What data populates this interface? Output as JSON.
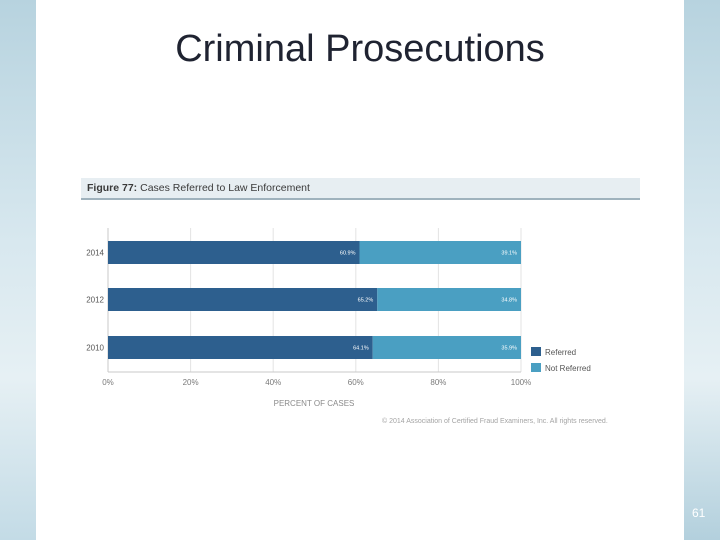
{
  "slide": {
    "title": "Criminal Prosecutions",
    "page_number": "61"
  },
  "figure": {
    "label": "Figure 77:",
    "title": "Cases Referred to Law Enforcement",
    "copyright": "© 2014 Association of Certified Fraud Examiners, Inc. All rights reserved."
  },
  "chart_data": {
    "type": "bar",
    "orientation": "horizontal",
    "stacked": true,
    "title": "Figure 77: Cases Referred to Law Enforcement",
    "categories": [
      "2014",
      "2012",
      "2010"
    ],
    "series": [
      {
        "name": "Referred",
        "values": [
          60.9,
          65.2,
          64.1
        ],
        "labels": [
          "60.9%",
          "65.2%",
          "64.1%"
        ],
        "color": "#2d5f8e"
      },
      {
        "name": "Not Referred",
        "values": [
          39.1,
          34.8,
          35.9
        ],
        "labels": [
          "39.1%",
          "34.8%",
          "35.9%"
        ],
        "color": "#4a9fc2"
      }
    ],
    "xlabel": "PERCENT OF CASES",
    "xlim": [
      0,
      100
    ],
    "xticks": [
      "0%",
      "20%",
      "40%",
      "60%",
      "80%",
      "100%"
    ],
    "grid": true,
    "legend_position": "bottom-right"
  }
}
